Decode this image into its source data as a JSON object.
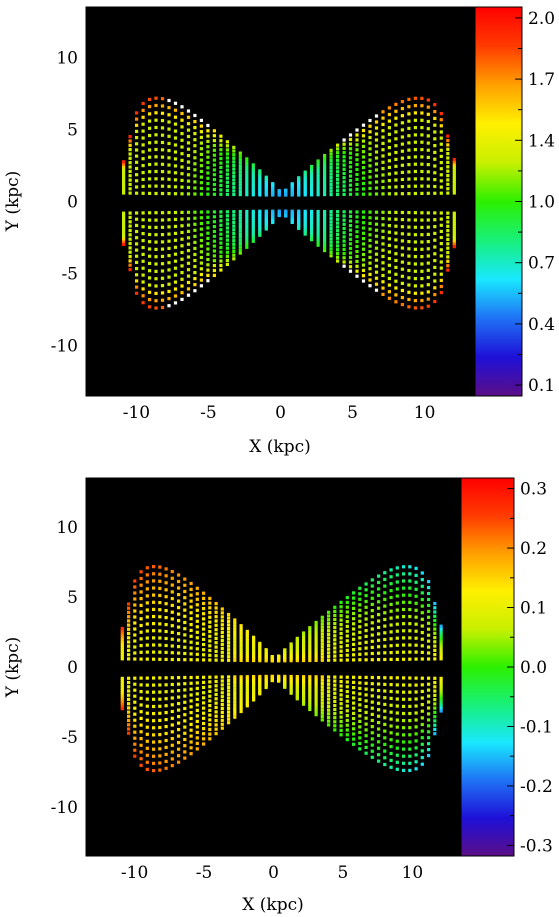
{
  "chart_data": [
    {
      "type": "heatmap",
      "xlabel": "X (kpc)",
      "ylabel": "Y (kpc)",
      "xlim": [
        -13.5,
        13.5
      ],
      "ylim": [
        -13.5,
        13.5
      ],
      "x_ticks": [
        "-10",
        "-5",
        "0",
        "5",
        "10"
      ],
      "y_ticks": [
        "10",
        "5",
        "0",
        "-5",
        "-10"
      ],
      "background": "#000000",
      "colorbar": {
        "range": [
          0.1,
          2.0
        ],
        "tick_labels": [
          "2.0",
          "1.7",
          "1.4",
          "1.0",
          "0.7",
          "0.4",
          "0.1"
        ]
      },
      "field": {
        "pattern": "symmetric bow-tie of curved streamlines above and below the x-axis",
        "center_value": 0.5,
        "mid_value": 1.25,
        "edge_value": 1.9,
        "x_extent": [
          -11,
          12
        ],
        "y_extent_abs": [
          0.5,
          9.5
        ]
      }
    },
    {
      "type": "heatmap",
      "xlabel": "X (kpc)",
      "ylabel": "Y (kpc)",
      "xlim": [
        -13.5,
        13.5
      ],
      "ylim": [
        -13.5,
        13.5
      ],
      "x_ticks": [
        "-10",
        "-5",
        "0",
        "5",
        "10"
      ],
      "y_ticks": [
        "10",
        "5",
        "0",
        "-5",
        "-10"
      ],
      "background": "#000000",
      "colorbar": {
        "range": [
          -0.3,
          0.3
        ],
        "tick_labels": [
          "0.3",
          "0.2",
          "0.1",
          "0.0",
          "-0.1",
          "-0.2",
          "-0.3"
        ]
      },
      "field": {
        "pattern": "symmetric bow-tie; left side positive, right side negative",
        "center_value": 0.17,
        "left_edge_value": 0.25,
        "right_edge_value": -0.15,
        "x_extent": [
          -11,
          12
        ],
        "y_extent_abs": [
          0.5,
          9.5
        ]
      }
    }
  ],
  "colormap": [
    "#5b0e87",
    "#1e10d8",
    "#1f72f5",
    "#19e8ff",
    "#18f07a",
    "#2cf000",
    "#c8f000",
    "#fff000",
    "#ffa000",
    "#ff3b00",
    "#ff0000"
  ],
  "marker_color": "#ffffff"
}
